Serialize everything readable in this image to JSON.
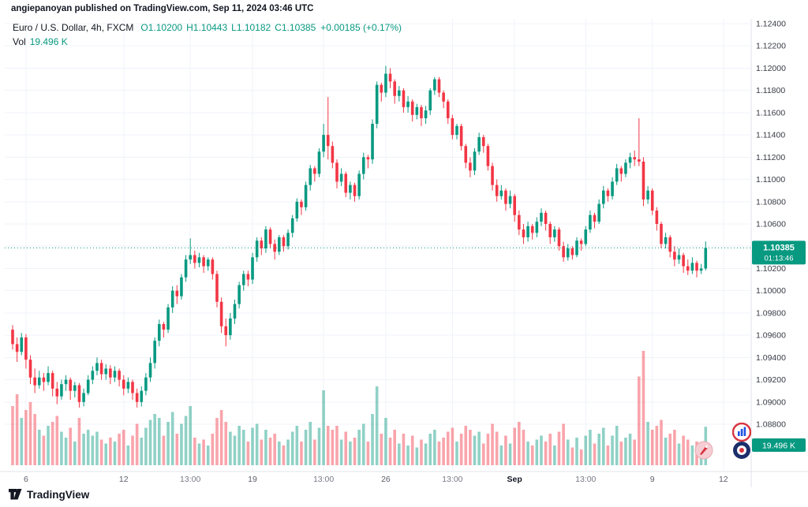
{
  "attribution": "angiepanoyan published on TradingView.com, Sep 11, 2024 03:46 UTC",
  "legend": {
    "title": "Euro / U.S. Dollar, 4h, FXCM",
    "ohlc": [
      "O1.10200",
      "H1.10443",
      "L1.10182",
      "C1.10385",
      "+0.00185 (+0.17%)"
    ],
    "vol_label": "Vol",
    "vol_value": "19.496 K"
  },
  "price_tag": {
    "price": "1.10385",
    "countdown": "01:13:46"
  },
  "volume_tag": "19.496 K",
  "footer": {
    "brand": "TradingView"
  },
  "icons": [
    "tradingview-logo-icon",
    "bar-chart-sticker-icon",
    "rocket-sticker-icon",
    "target-sticker-icon"
  ],
  "colors": {
    "up": "#089981",
    "down": "#f23645",
    "vol_up": "rgba(8,153,129,0.45)",
    "vol_down": "rgba(242,54,69,0.45)",
    "grid": "#f0f3fa",
    "axis_text": "#363a45",
    "time_text": "#787b86",
    "tag_bg": "#089981",
    "separator": "#e0e3eb"
  },
  "chart_data": {
    "type": "candlestick+volume",
    "title": "Euro / U.S. Dollar, 4h, FXCM",
    "symbol": "EUR/USD",
    "interval": "4h",
    "exchange": "FXCM",
    "ylim": [
      1.088,
      1.124
    ],
    "current_price": 1.10385,
    "y_ticks": [
      "1.12400",
      "1.12200",
      "1.12000",
      "1.11800",
      "1.11600",
      "1.11400",
      "1.11200",
      "1.11000",
      "1.10800",
      "1.10600",
      "1.10400",
      "1.10200",
      "1.10000",
      "1.09800",
      "1.09600",
      "1.09400",
      "1.09200",
      "1.09000",
      "1.08800"
    ],
    "x_ticks": [
      {
        "label": "6",
        "i": 3,
        "kind": "day"
      },
      {
        "label": "12",
        "i": 25,
        "kind": "day"
      },
      {
        "label": "13:00",
        "i": 40,
        "kind": "time"
      },
      {
        "label": "19",
        "i": 54,
        "kind": "day"
      },
      {
        "label": "13:00",
        "i": 70,
        "kind": "time"
      },
      {
        "label": "26",
        "i": 84,
        "kind": "day"
      },
      {
        "label": "13:00",
        "i": 99,
        "kind": "time"
      },
      {
        "label": "Sep",
        "i": 113,
        "kind": "month"
      },
      {
        "label": "13:00",
        "i": 129,
        "kind": "time"
      },
      {
        "label": "9",
        "i": 144,
        "kind": "day"
      },
      {
        "label": "12",
        "i": 160,
        "kind": "day"
      }
    ],
    "candles": [
      [
        1.0965,
        1.0969,
        1.0947,
        1.0952,
        30
      ],
      [
        1.0952,
        1.0958,
        1.0936,
        1.0945,
        36
      ],
      [
        1.0945,
        1.0962,
        1.0942,
        1.0958,
        24
      ],
      [
        1.0958,
        1.0961,
        1.093,
        1.0938,
        28
      ],
      [
        1.0938,
        1.0942,
        1.0916,
        1.0922,
        32
      ],
      [
        1.0922,
        1.093,
        1.0908,
        1.0915,
        26
      ],
      [
        1.0915,
        1.0928,
        1.0912,
        1.0922,
        18
      ],
      [
        1.0922,
        1.0926,
        1.091,
        1.0918,
        15
      ],
      [
        1.0918,
        1.0932,
        1.0915,
        1.0926,
        20
      ],
      [
        1.0926,
        1.0928,
        1.0905,
        1.0912,
        22
      ],
      [
        1.0912,
        1.0918,
        1.0898,
        1.0905,
        25
      ],
      [
        1.0905,
        1.092,
        1.0902,
        1.0916,
        17
      ],
      [
        1.0916,
        1.0924,
        1.091,
        1.092,
        14
      ],
      [
        1.092,
        1.0922,
        1.0902,
        1.091,
        19
      ],
      [
        1.091,
        1.0918,
        1.0904,
        1.0915,
        12
      ],
      [
        1.0915,
        1.0917,
        1.0895,
        1.09,
        24
      ],
      [
        1.09,
        1.0912,
        1.0896,
        1.0908,
        16
      ],
      [
        1.0908,
        1.0924,
        1.0906,
        1.092,
        18
      ],
      [
        1.092,
        1.0932,
        1.0916,
        1.0928,
        15
      ],
      [
        1.0928,
        1.094,
        1.0924,
        1.0935,
        17
      ],
      [
        1.0935,
        1.0938,
        1.092,
        1.0925,
        13
      ],
      [
        1.0925,
        1.0934,
        1.092,
        1.093,
        11
      ],
      [
        1.093,
        1.0933,
        1.0916,
        1.0922,
        14
      ],
      [
        1.0922,
        1.0932,
        1.0918,
        1.0928,
        12
      ],
      [
        1.0928,
        1.093,
        1.0914,
        1.092,
        16
      ],
      [
        1.092,
        1.0924,
        1.0906,
        1.0912,
        18
      ],
      [
        1.0912,
        1.0922,
        1.0908,
        1.0918,
        10
      ],
      [
        1.0918,
        1.092,
        1.0902,
        1.0908,
        15
      ],
      [
        1.0908,
        1.0912,
        1.0895,
        1.09,
        21
      ],
      [
        1.09,
        1.0914,
        1.0896,
        1.091,
        14
      ],
      [
        1.091,
        1.0926,
        1.0906,
        1.0922,
        19
      ],
      [
        1.0922,
        1.094,
        1.0918,
        1.0935,
        23
      ],
      [
        1.0935,
        1.0958,
        1.093,
        1.0955,
        26
      ],
      [
        1.0955,
        1.0974,
        1.095,
        1.097,
        24
      ],
      [
        1.097,
        1.0972,
        1.0958,
        1.0965,
        15
      ],
      [
        1.0965,
        1.0988,
        1.0962,
        1.0985,
        22
      ],
      [
        1.0985,
        1.1004,
        1.098,
        1.1,
        27
      ],
      [
        1.1,
        1.1005,
        1.0988,
        1.0995,
        16
      ],
      [
        1.0995,
        1.1015,
        1.0992,
        1.1012,
        21
      ],
      [
        1.1012,
        1.1032,
        1.1008,
        1.1028,
        25
      ],
      [
        1.1028,
        1.1047,
        1.1024,
        1.1032,
        30
      ],
      [
        1.1032,
        1.1036,
        1.102,
        1.1025,
        14
      ],
      [
        1.1025,
        1.1034,
        1.1021,
        1.103,
        11
      ],
      [
        1.103,
        1.1032,
        1.1016,
        1.1022,
        13
      ],
      [
        1.1022,
        1.103,
        1.1018,
        1.1028,
        10
      ],
      [
        1.1028,
        1.103,
        1.101,
        1.1015,
        16
      ],
      [
        1.1015,
        1.1018,
        1.0985,
        1.099,
        24
      ],
      [
        1.099,
        1.0994,
        1.0962,
        1.0968,
        28
      ],
      [
        1.0968,
        1.0975,
        1.095,
        1.096,
        22
      ],
      [
        1.096,
        1.098,
        1.0956,
        1.0975,
        17
      ],
      [
        1.0975,
        1.0992,
        1.097,
        1.0988,
        15
      ],
      [
        1.0988,
        1.1008,
        1.0984,
        1.1005,
        20
      ],
      [
        1.1005,
        1.1018,
        1.1,
        1.1015,
        18
      ],
      [
        1.1015,
        1.1018,
        1.1004,
        1.101,
        12
      ],
      [
        1.101,
        1.1034,
        1.1006,
        1.103,
        19
      ],
      [
        1.103,
        1.1048,
        1.1026,
        1.1045,
        21
      ],
      [
        1.1045,
        1.1048,
        1.1032,
        1.1038,
        13
      ],
      [
        1.1038,
        1.1058,
        1.1034,
        1.1055,
        18
      ],
      [
        1.1055,
        1.1057,
        1.1038,
        1.1042,
        14
      ],
      [
        1.1042,
        1.1046,
        1.1028,
        1.1035,
        16
      ],
      [
        1.1035,
        1.105,
        1.1032,
        1.1048,
        12
      ],
      [
        1.1048,
        1.105,
        1.1035,
        1.104,
        10
      ],
      [
        1.104,
        1.1055,
        1.1037,
        1.1052,
        13
      ],
      [
        1.1052,
        1.1068,
        1.1048,
        1.1065,
        17
      ],
      [
        1.1065,
        1.1083,
        1.1062,
        1.108,
        20
      ],
      [
        1.108,
        1.1082,
        1.1068,
        1.1075,
        12
      ],
      [
        1.1075,
        1.1098,
        1.1072,
        1.1095,
        18
      ],
      [
        1.1095,
        1.1113,
        1.109,
        1.111,
        22
      ],
      [
        1.111,
        1.1112,
        1.1098,
        1.1105,
        13
      ],
      [
        1.1105,
        1.1128,
        1.1102,
        1.1125,
        19
      ],
      [
        1.1125,
        1.115,
        1.112,
        1.114,
        38
      ],
      [
        1.114,
        1.1174,
        1.1118,
        1.113,
        20
      ],
      [
        1.113,
        1.1134,
        1.111,
        1.1115,
        18
      ],
      [
        1.1115,
        1.1118,
        1.1092,
        1.1098,
        20
      ],
      [
        1.1098,
        1.111,
        1.1094,
        1.1105,
        13
      ],
      [
        1.1105,
        1.1107,
        1.1084,
        1.1088,
        17
      ],
      [
        1.1088,
        1.1098,
        1.1082,
        1.1095,
        12
      ],
      [
        1.1095,
        1.1097,
        1.108,
        1.1085,
        14
      ],
      [
        1.1085,
        1.1108,
        1.1082,
        1.1105,
        18
      ],
      [
        1.1105,
        1.1124,
        1.11,
        1.112,
        21
      ],
      [
        1.112,
        1.1122,
        1.111,
        1.1118,
        12
      ],
      [
        1.1118,
        1.1154,
        1.1114,
        1.115,
        26
      ],
      [
        1.115,
        1.1188,
        1.1146,
        1.1185,
        40
      ],
      [
        1.1185,
        1.1187,
        1.117,
        1.1178,
        16
      ],
      [
        1.1178,
        1.1202,
        1.1174,
        1.1195,
        24
      ],
      [
        1.1195,
        1.12,
        1.1182,
        1.1188,
        14
      ],
      [
        1.1188,
        1.119,
        1.1168,
        1.1175,
        18
      ],
      [
        1.1175,
        1.1184,
        1.117,
        1.118,
        11
      ],
      [
        1.118,
        1.1182,
        1.116,
        1.1165,
        16
      ],
      [
        1.1165,
        1.1175,
        1.116,
        1.117,
        10
      ],
      [
        1.117,
        1.1172,
        1.1152,
        1.1158,
        15
      ],
      [
        1.1158,
        1.1168,
        1.1154,
        1.1165,
        9
      ],
      [
        1.1165,
        1.1167,
        1.1148,
        1.1155,
        13
      ],
      [
        1.1155,
        1.1166,
        1.115,
        1.1162,
        11
      ],
      [
        1.1162,
        1.1182,
        1.1158,
        1.118,
        16
      ],
      [
        1.118,
        1.1192,
        1.1176,
        1.119,
        18
      ],
      [
        1.119,
        1.1192,
        1.1174,
        1.1178,
        12
      ],
      [
        1.1178,
        1.118,
        1.1164,
        1.117,
        14
      ],
      [
        1.117,
        1.1172,
        1.115,
        1.1155,
        17
      ],
      [
        1.1155,
        1.1158,
        1.1136,
        1.114,
        19
      ],
      [
        1.114,
        1.115,
        1.1136,
        1.1148,
        12
      ],
      [
        1.1148,
        1.115,
        1.1126,
        1.113,
        16
      ],
      [
        1.113,
        1.1132,
        1.111,
        1.1115,
        20
      ],
      [
        1.1115,
        1.112,
        1.1102,
        1.1108,
        18
      ],
      [
        1.1108,
        1.1128,
        1.1104,
        1.1125,
        15
      ],
      [
        1.1125,
        1.1142,
        1.1122,
        1.1138,
        17
      ],
      [
        1.1138,
        1.114,
        1.1124,
        1.113,
        11
      ],
      [
        1.113,
        1.1132,
        1.1108,
        1.1112,
        16
      ],
      [
        1.1112,
        1.1115,
        1.109,
        1.1095,
        21
      ],
      [
        1.1095,
        1.11,
        1.108,
        1.1085,
        17
      ],
      [
        1.1085,
        1.1095,
        1.1082,
        1.109,
        10
      ],
      [
        1.109,
        1.1092,
        1.1072,
        1.1078,
        15
      ],
      [
        1.1078,
        1.109,
        1.1074,
        1.1085,
        11
      ],
      [
        1.1085,
        1.1087,
        1.1062,
        1.1068,
        19
      ],
      [
        1.1068,
        1.1072,
        1.105,
        1.1055,
        22
      ],
      [
        1.1055,
        1.106,
        1.1042,
        1.1048,
        18
      ],
      [
        1.1048,
        1.1062,
        1.1044,
        1.1058,
        12
      ],
      [
        1.1058,
        1.106,
        1.1046,
        1.1052,
        10
      ],
      [
        1.1052,
        1.1066,
        1.1048,
        1.1062,
        13
      ],
      [
        1.1062,
        1.1074,
        1.1058,
        1.107,
        15
      ],
      [
        1.107,
        1.1072,
        1.1054,
        1.106,
        12
      ],
      [
        1.106,
        1.1062,
        1.1042,
        1.1048,
        16
      ],
      [
        1.1048,
        1.1058,
        1.1044,
        1.1055,
        10
      ],
      [
        1.1055,
        1.1057,
        1.1036,
        1.104,
        17
      ],
      [
        1.104,
        1.1044,
        1.1026,
        1.103,
        21
      ],
      [
        1.103,
        1.1042,
        1.1027,
        1.1038,
        13
      ],
      [
        1.1038,
        1.104,
        1.1028,
        1.1032,
        9
      ],
      [
        1.1032,
        1.1048,
        1.103,
        1.1045,
        14
      ],
      [
        1.1045,
        1.1047,
        1.1036,
        1.1042,
        8
      ],
      [
        1.1042,
        1.1058,
        1.104,
        1.1055,
        15
      ],
      [
        1.1055,
        1.1072,
        1.1052,
        1.1068,
        18
      ],
      [
        1.1068,
        1.107,
        1.1056,
        1.1062,
        11
      ],
      [
        1.1062,
        1.1082,
        1.106,
        1.1078,
        16
      ],
      [
        1.1078,
        1.1094,
        1.1074,
        1.109,
        19
      ],
      [
        1.109,
        1.1092,
        1.108,
        1.1085,
        10
      ],
      [
        1.1085,
        1.1102,
        1.1082,
        1.1098,
        15
      ],
      [
        1.1098,
        1.1114,
        1.1095,
        1.111,
        20
      ],
      [
        1.111,
        1.1112,
        1.1098,
        1.1105,
        12
      ],
      [
        1.1105,
        1.1118,
        1.1102,
        1.1115,
        14
      ],
      [
        1.1115,
        1.1124,
        1.111,
        1.112,
        16
      ],
      [
        1.112,
        1.1126,
        1.1112,
        1.1118,
        13
      ],
      [
        1.1118,
        1.1155,
        1.1112,
        1.1116,
        45
      ],
      [
        1.1116,
        1.112,
        1.1076,
        1.1082,
        58
      ],
      [
        1.1082,
        1.1094,
        1.1078,
        1.109,
        22
      ],
      [
        1.109,
        1.1092,
        1.1068,
        1.1072,
        18
      ],
      [
        1.1072,
        1.1075,
        1.1054,
        1.106,
        20
      ],
      [
        1.106,
        1.1062,
        1.1038,
        1.1042,
        23
      ],
      [
        1.1042,
        1.1052,
        1.1038,
        1.1048,
        14
      ],
      [
        1.1048,
        1.105,
        1.103,
        1.1035,
        16
      ],
      [
        1.1035,
        1.104,
        1.1022,
        1.1028,
        18
      ],
      [
        1.1028,
        1.1038,
        1.1024,
        1.1032,
        11
      ],
      [
        1.1032,
        1.1034,
        1.1016,
        1.1022,
        15
      ],
      [
        1.1022,
        1.1028,
        1.1014,
        1.1018,
        13
      ],
      [
        1.1018,
        1.103,
        1.1015,
        1.1025,
        10
      ],
      [
        1.1025,
        1.1027,
        1.1012,
        1.1018,
        12
      ],
      [
        1.1018,
        1.1024,
        1.1015,
        1.102,
        9
      ],
      [
        1.102,
        1.10443,
        1.10182,
        1.10385,
        19.496
      ]
    ]
  }
}
